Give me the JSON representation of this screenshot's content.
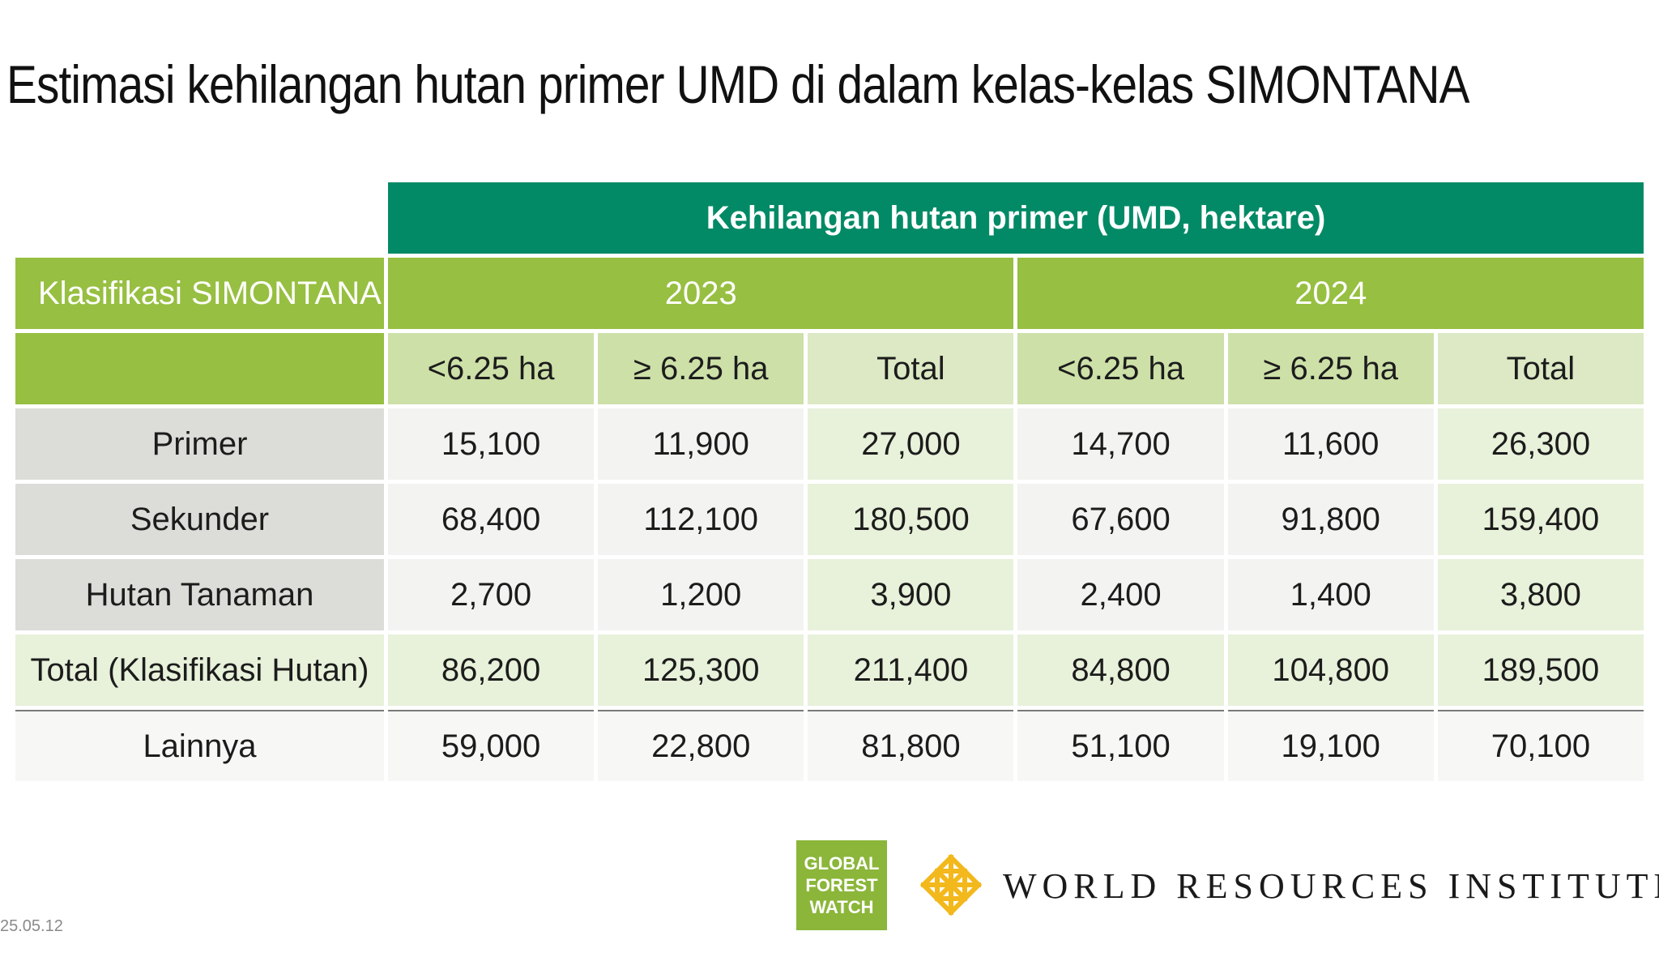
{
  "title": "Estimasi kehilangan hutan primer UMD di dalam kelas-kelas SIMONTANA",
  "table": {
    "main_header": "Kehilangan hutan primer (UMD, hektare)",
    "row_header_label": "Klasifikasi SIMONTANA",
    "years": [
      "2023",
      "2024"
    ],
    "sub_headers": [
      "<6.25 ha",
      "≥ 6.25 ha",
      "Total",
      "<6.25 ha",
      "≥ 6.25 ha",
      "Total"
    ],
    "rows": [
      {
        "label": "Primer",
        "values": [
          "15,100",
          "11,900",
          "27,000",
          "14,700",
          "11,600",
          "26,300"
        ]
      },
      {
        "label": "Sekunder",
        "values": [
          "68,400",
          "112,100",
          "180,500",
          "67,600",
          "91,800",
          "159,400"
        ]
      },
      {
        "label": "Hutan Tanaman",
        "values": [
          "2,700",
          "1,200",
          "3,900",
          "2,400",
          "1,400",
          "3,800"
        ]
      },
      {
        "label": "Total (Klasifikasi Hutan)",
        "values": [
          "86,200",
          "125,300",
          "211,400",
          "84,800",
          "104,800",
          "189,500"
        ]
      },
      {
        "label": "Lainnya",
        "values": [
          "59,000",
          "22,800",
          "81,800",
          "51,100",
          "19,100",
          "70,100"
        ]
      }
    ]
  },
  "date_stamp": "25.05.12",
  "logos": {
    "gfw_lines": [
      "GLOBAL",
      "FOREST",
      "WATCH"
    ],
    "wri_name": "WORLD RESOURCES INSTITUTE"
  },
  "colors": {
    "dark_green": "#028a66",
    "green": "#97bf41",
    "light_green": "#cde0a8",
    "wri_gold": "#f2b81c"
  }
}
